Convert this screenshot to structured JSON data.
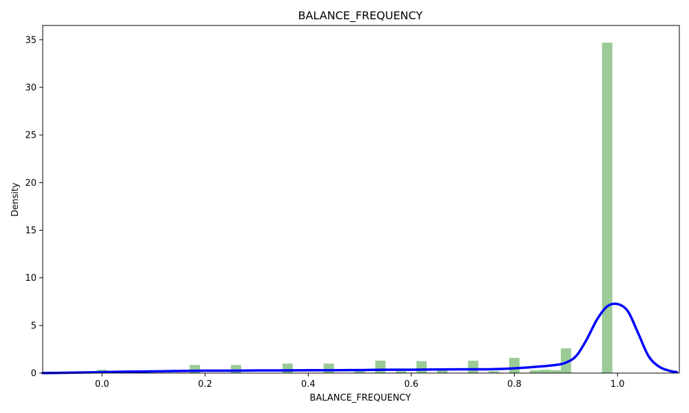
{
  "chart_data": {
    "type": "bar",
    "title": "BALANCE_FREQUENCY",
    "xlabel": "BALANCE_FREQUENCY",
    "ylabel": "Density",
    "xlim": [
      -0.115,
      1.12
    ],
    "ylim": [
      0,
      36.5
    ],
    "xticks": [
      0.0,
      0.2,
      0.4,
      0.6,
      0.8,
      1.0
    ],
    "xtick_labels": [
      "0.0",
      "0.2",
      "0.4",
      "0.6",
      "0.8",
      "1.0"
    ],
    "yticks": [
      0,
      5,
      10,
      15,
      20,
      25,
      30,
      35
    ],
    "ytick_labels": [
      "0",
      "5",
      "10",
      "15",
      "20",
      "25",
      "30",
      "35"
    ],
    "grid": false,
    "series": [
      {
        "kind": "histogram",
        "color": "#9acb96",
        "bin_width": 0.02,
        "bins": [
          {
            "x": 0.0,
            "density": 0.35
          },
          {
            "x": 0.08,
            "density": 0.25
          },
          {
            "x": 0.18,
            "density": 0.85
          },
          {
            "x": 0.26,
            "density": 0.85
          },
          {
            "x": 0.36,
            "density": 1.0
          },
          {
            "x": 0.44,
            "density": 1.0
          },
          {
            "x": 0.5,
            "density": 0.3
          },
          {
            "x": 0.54,
            "density": 1.3
          },
          {
            "x": 0.58,
            "density": 0.2
          },
          {
            "x": 0.62,
            "density": 1.25
          },
          {
            "x": 0.66,
            "density": 0.35
          },
          {
            "x": 0.72,
            "density": 1.3
          },
          {
            "x": 0.76,
            "density": 0.2
          },
          {
            "x": 0.8,
            "density": 1.6
          },
          {
            "x": 0.84,
            "density": 0.3
          },
          {
            "x": 0.86,
            "density": 0.35
          },
          {
            "x": 0.88,
            "density": 0.3
          },
          {
            "x": 0.9,
            "density": 2.6
          },
          {
            "x": 0.98,
            "density": 34.7
          }
        ]
      },
      {
        "kind": "kde",
        "color": "#0000ff",
        "x": [
          -0.115,
          -0.05,
          0.0,
          0.05,
          0.1,
          0.15,
          0.2,
          0.25,
          0.3,
          0.35,
          0.4,
          0.45,
          0.5,
          0.55,
          0.6,
          0.65,
          0.7,
          0.75,
          0.8,
          0.84,
          0.88,
          0.9,
          0.92,
          0.94,
          0.96,
          0.98,
          1.0,
          1.02,
          1.04,
          1.06,
          1.08,
          1.1,
          1.115
        ],
        "y": [
          0.0,
          0.05,
          0.1,
          0.15,
          0.18,
          0.22,
          0.25,
          0.25,
          0.28,
          0.28,
          0.3,
          0.3,
          0.32,
          0.35,
          0.35,
          0.38,
          0.4,
          0.4,
          0.5,
          0.65,
          0.85,
          1.1,
          1.8,
          3.5,
          5.6,
          7.0,
          7.25,
          6.5,
          4.2,
          1.8,
          0.7,
          0.25,
          0.1
        ]
      }
    ]
  }
}
